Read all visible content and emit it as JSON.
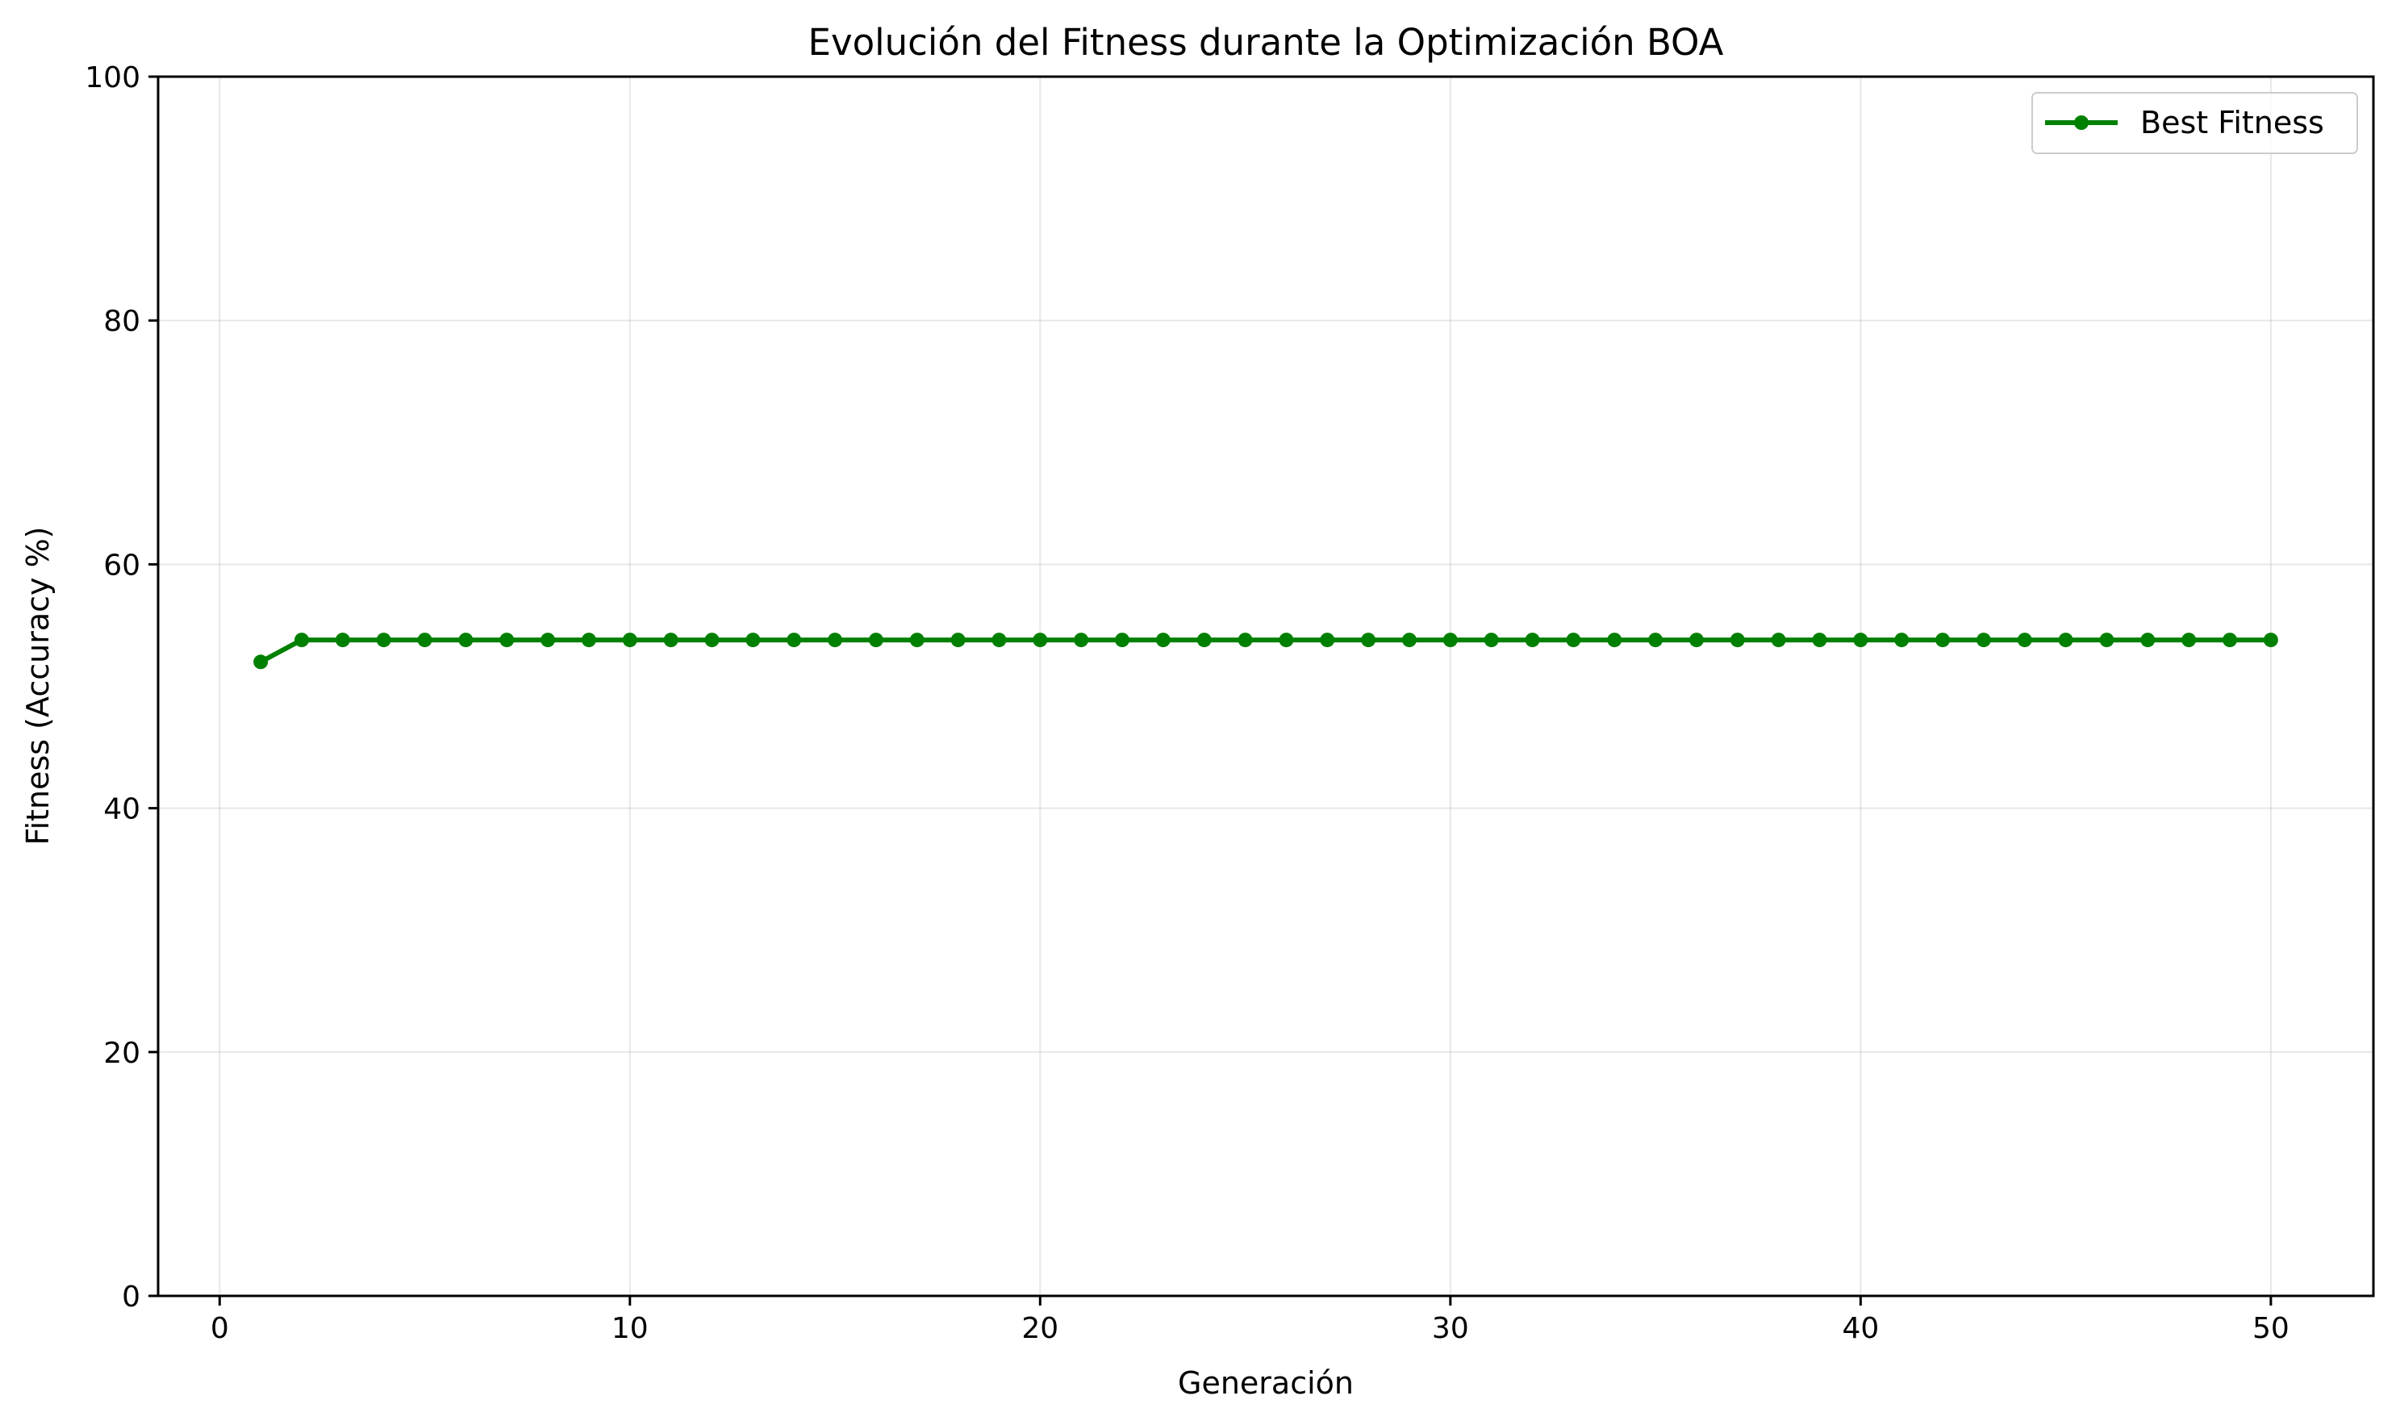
{
  "chart_data": {
    "type": "line",
    "title": "Evolución del Fitness durante la Optimización BOA",
    "xlabel": "Generación",
    "ylabel": "Fitness (Accuracy %)",
    "xlim": [
      -1.5,
      52.5
    ],
    "ylim": [
      0,
      100
    ],
    "xticks": [
      0,
      10,
      20,
      30,
      40,
      50
    ],
    "yticks": [
      0,
      20,
      40,
      60,
      80,
      100
    ],
    "grid": true,
    "legend_position": "top-right",
    "series": [
      {
        "name": "Best Fitness",
        "color": "#008000",
        "marker": "circle",
        "x": [
          1,
          2,
          3,
          4,
          5,
          6,
          7,
          8,
          9,
          10,
          11,
          12,
          13,
          14,
          15,
          16,
          17,
          18,
          19,
          20,
          21,
          22,
          23,
          24,
          25,
          26,
          27,
          28,
          29,
          30,
          31,
          32,
          33,
          34,
          35,
          36,
          37,
          38,
          39,
          40,
          41,
          42,
          43,
          44,
          45,
          46,
          47,
          48,
          49,
          50
        ],
        "y": [
          52.0,
          53.8,
          53.8,
          53.8,
          53.8,
          53.8,
          53.8,
          53.8,
          53.8,
          53.8,
          53.8,
          53.8,
          53.8,
          53.8,
          53.8,
          53.8,
          53.8,
          53.8,
          53.8,
          53.8,
          53.8,
          53.8,
          53.8,
          53.8,
          53.8,
          53.8,
          53.8,
          53.8,
          53.8,
          53.8,
          53.8,
          53.8,
          53.8,
          53.8,
          53.8,
          53.8,
          53.8,
          53.8,
          53.8,
          53.8,
          53.8,
          53.8,
          53.8,
          53.8,
          53.8,
          53.8,
          53.8,
          53.8,
          53.8,
          53.8
        ]
      }
    ]
  }
}
